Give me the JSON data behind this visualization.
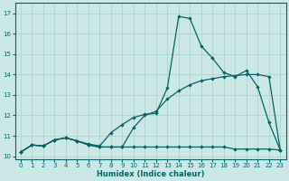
{
  "xlabel": "Humidex (Indice chaleur)",
  "bg_color": "#cce8e6",
  "line_color": "#006666",
  "grid_color": "#aacfcc",
  "xlim": [
    -0.5,
    23.5
  ],
  "ylim": [
    9.85,
    17.5
  ],
  "xticks": [
    0,
    1,
    2,
    3,
    4,
    5,
    6,
    7,
    8,
    9,
    10,
    11,
    12,
    13,
    14,
    15,
    16,
    17,
    18,
    19,
    20,
    21,
    22,
    23
  ],
  "yticks": [
    10,
    11,
    12,
    13,
    14,
    15,
    16,
    17
  ],
  "line1_x": [
    0,
    1,
    2,
    3,
    4,
    5,
    6,
    7,
    8,
    9,
    10,
    11,
    12,
    13,
    14,
    15,
    16,
    17,
    18,
    19,
    20,
    21,
    22,
    23
  ],
  "line1_y": [
    10.2,
    10.55,
    10.5,
    10.8,
    10.9,
    10.75,
    10.55,
    10.45,
    10.45,
    10.45,
    10.45,
    10.45,
    10.45,
    10.45,
    10.45,
    10.45,
    10.45,
    10.45,
    10.45,
    10.35,
    10.35,
    10.35,
    10.35,
    10.3
  ],
  "line2_x": [
    0,
    1,
    2,
    3,
    4,
    5,
    6,
    7,
    8,
    9,
    10,
    11,
    12,
    13,
    14,
    15,
    16,
    17,
    18,
    19,
    20,
    21,
    22,
    23
  ],
  "line2_y": [
    10.2,
    10.55,
    10.5,
    10.8,
    10.9,
    10.75,
    10.55,
    10.45,
    10.45,
    10.45,
    11.4,
    12.0,
    12.2,
    12.8,
    13.2,
    13.5,
    13.7,
    13.8,
    13.9,
    13.95,
    14.0,
    14.0,
    13.9,
    10.3
  ],
  "line3_x": [
    0,
    1,
    2,
    3,
    4,
    5,
    6,
    7,
    8,
    9,
    10,
    11,
    12,
    13,
    14,
    15,
    16,
    17,
    18,
    19,
    20,
    21,
    22,
    23
  ],
  "line3_y": [
    10.2,
    10.55,
    10.5,
    10.8,
    10.9,
    10.75,
    10.6,
    10.5,
    11.15,
    11.55,
    11.9,
    12.05,
    12.1,
    13.35,
    16.85,
    16.75,
    15.4,
    14.8,
    14.1,
    13.9,
    14.2,
    13.4,
    11.65,
    10.3
  ]
}
